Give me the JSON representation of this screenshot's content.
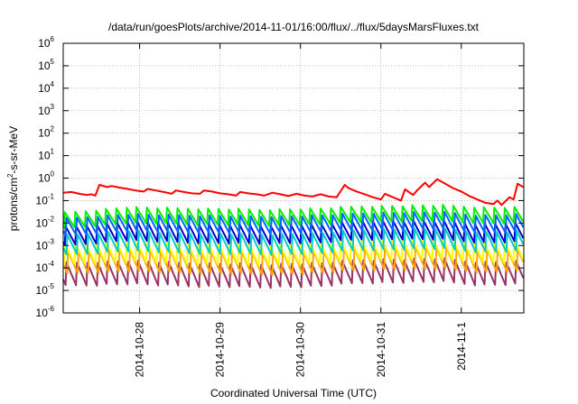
{
  "chart_data": {
    "type": "line",
    "title": "/data/run/goesPlots/archive/2014-11-01/16:00/flux/../flux/5daysMarsFluxes.txt",
    "xlabel": "Coordinated Universal Time (UTC)",
    "ylabel": {
      "base": "protons/cm",
      "sup": "2",
      "rest": "-s-sr-MeV"
    },
    "yscale": "log",
    "ylim_exponents": [
      -6,
      6
    ],
    "y_ticks": [
      {
        "base": "10",
        "exp": "-6"
      },
      {
        "base": "10",
        "exp": "-5"
      },
      {
        "base": "10",
        "exp": "-4"
      },
      {
        "base": "10",
        "exp": "-3"
      },
      {
        "base": "10",
        "exp": "-2"
      },
      {
        "base": "10",
        "exp": "-1"
      },
      {
        "base": "10",
        "exp": "0"
      },
      {
        "base": "10",
        "exp": "1"
      },
      {
        "base": "10",
        "exp": "2"
      },
      {
        "base": "10",
        "exp": "3"
      },
      {
        "base": "10",
        "exp": "4"
      },
      {
        "base": "10",
        "exp": "5"
      },
      {
        "base": "10",
        "exp": "6"
      }
    ],
    "x_domain_days": [
      0,
      5.727
    ],
    "x_ticks": [
      {
        "label": "2014-10-28",
        "day": 0.95
      },
      {
        "label": "2014-10-29",
        "day": 1.95
      },
      {
        "label": "2014-10-30",
        "day": 2.95
      },
      {
        "label": "2014-10-31",
        "day": 3.95
      },
      {
        "label": "2014-11-1",
        "day": 4.95
      }
    ],
    "grid": true,
    "colors": [
      "#ff0000",
      "#00ee00",
      "#0066ff",
      "#0000cc",
      "#00cccc",
      "#ffff00",
      "#ffa500",
      "#993366"
    ],
    "series": [
      {
        "color": "#ff0000",
        "log_points": [
          [
            0.0,
            -0.65
          ],
          [
            0.1,
            -0.62
          ],
          [
            0.2,
            -0.7
          ],
          [
            0.3,
            -0.75
          ],
          [
            0.35,
            -0.72
          ],
          [
            0.4,
            -0.78
          ],
          [
            0.45,
            -0.3
          ],
          [
            0.55,
            -0.4
          ],
          [
            0.6,
            -0.35
          ],
          [
            0.7,
            -0.42
          ],
          [
            0.8,
            -0.48
          ],
          [
            0.9,
            -0.55
          ],
          [
            1.0,
            -0.6
          ],
          [
            1.05,
            -0.48
          ],
          [
            1.15,
            -0.55
          ],
          [
            1.25,
            -0.62
          ],
          [
            1.35,
            -0.7
          ],
          [
            1.4,
            -0.55
          ],
          [
            1.5,
            -0.62
          ],
          [
            1.6,
            -0.68
          ],
          [
            1.7,
            -0.7
          ],
          [
            1.75,
            -0.55
          ],
          [
            1.85,
            -0.6
          ],
          [
            1.95,
            -0.68
          ],
          [
            2.05,
            -0.72
          ],
          [
            2.15,
            -0.78
          ],
          [
            2.2,
            -0.62
          ],
          [
            2.3,
            -0.68
          ],
          [
            2.4,
            -0.72
          ],
          [
            2.5,
            -0.78
          ],
          [
            2.6,
            -0.65
          ],
          [
            2.7,
            -0.72
          ],
          [
            2.8,
            -0.8
          ],
          [
            2.9,
            -0.7
          ],
          [
            3.0,
            -0.78
          ],
          [
            3.1,
            -0.82
          ],
          [
            3.2,
            -0.72
          ],
          [
            3.3,
            -0.82
          ],
          [
            3.4,
            -0.85
          ],
          [
            3.5,
            -0.3
          ],
          [
            3.55,
            -0.45
          ],
          [
            3.65,
            -0.6
          ],
          [
            3.75,
            -0.72
          ],
          [
            3.85,
            -0.85
          ],
          [
            3.95,
            -0.95
          ],
          [
            4.0,
            -0.7
          ],
          [
            4.1,
            -0.85
          ],
          [
            4.2,
            -1.0
          ],
          [
            4.25,
            -0.5
          ],
          [
            4.35,
            -0.75
          ],
          [
            4.4,
            -0.55
          ],
          [
            4.5,
            -0.2
          ],
          [
            4.55,
            -0.4
          ],
          [
            4.65,
            -0.05
          ],
          [
            4.75,
            -0.25
          ],
          [
            4.85,
            -0.45
          ],
          [
            4.95,
            -0.6
          ],
          [
            5.05,
            -0.8
          ],
          [
            5.15,
            -0.95
          ],
          [
            5.25,
            -1.1
          ],
          [
            5.35,
            -1.15
          ],
          [
            5.4,
            -1.0
          ],
          [
            5.45,
            -1.2
          ],
          [
            5.55,
            -0.85
          ],
          [
            5.6,
            -0.95
          ],
          [
            5.65,
            -0.25
          ],
          [
            5.72,
            -0.4
          ]
        ]
      },
      {
        "color": "#00ee00",
        "base": -1.8,
        "amp": 0.75,
        "period": 0.127,
        "start": 0.02,
        "trend": [
          [
            0,
            -1.9
          ],
          [
            0.8,
            -1.65
          ],
          [
            1.5,
            -1.7
          ],
          [
            2.5,
            -1.75
          ],
          [
            3.2,
            -1.7
          ],
          [
            3.7,
            -1.6
          ],
          [
            4.7,
            -1.55
          ],
          [
            5.2,
            -1.65
          ],
          [
            5.72,
            -1.65
          ]
        ]
      },
      {
        "color": "#0066ff",
        "base": -2.15,
        "amp": 0.85,
        "period": 0.127,
        "start": 0.04,
        "trend": [
          [
            0,
            -2.2
          ],
          [
            0.8,
            -2.0
          ],
          [
            1.5,
            -2.05
          ],
          [
            2.5,
            -2.1
          ],
          [
            3.2,
            -2.05
          ],
          [
            3.7,
            -1.95
          ],
          [
            4.7,
            -1.9
          ],
          [
            5.2,
            -2.05
          ],
          [
            5.72,
            -2.0
          ]
        ]
      },
      {
        "color": "#0000cc",
        "base": -2.55,
        "amp": 0.9,
        "period": 0.127,
        "start": 0.03,
        "trend": [
          [
            0,
            -2.6
          ],
          [
            0.8,
            -2.35
          ],
          [
            1.5,
            -2.45
          ],
          [
            2.5,
            -2.5
          ],
          [
            3.2,
            -2.45
          ],
          [
            3.7,
            -2.3
          ],
          [
            4.7,
            -2.3
          ],
          [
            5.2,
            -2.45
          ],
          [
            5.72,
            -2.4
          ]
        ]
      },
      {
        "color": "#00cccc",
        "base": -2.95,
        "amp": 0.95,
        "period": 0.127,
        "start": 0.05,
        "trend": [
          [
            0,
            -3.0
          ],
          [
            0.8,
            -2.8
          ],
          [
            1.5,
            -2.9
          ],
          [
            2.5,
            -2.95
          ],
          [
            3.2,
            -2.9
          ],
          [
            3.7,
            -2.75
          ],
          [
            4.7,
            -2.7
          ],
          [
            5.2,
            -2.85
          ],
          [
            5.72,
            -2.8
          ]
        ]
      },
      {
        "color": "#ffff00",
        "base": -3.4,
        "amp": 1.0,
        "period": 0.127,
        "start": 0.02,
        "trend": [
          [
            0,
            -3.4
          ],
          [
            0.8,
            -3.25
          ],
          [
            1.5,
            -3.35
          ],
          [
            2.5,
            -3.4
          ],
          [
            3.2,
            -3.35
          ],
          [
            3.7,
            -3.2
          ],
          [
            4.7,
            -3.15
          ],
          [
            5.2,
            -3.3
          ],
          [
            5.72,
            -3.25
          ]
        ]
      },
      {
        "color": "#ffa500",
        "base": -3.8,
        "amp": 1.05,
        "period": 0.127,
        "start": 0.06,
        "trend": [
          [
            0,
            -3.8
          ],
          [
            0.8,
            -3.65
          ],
          [
            1.5,
            -3.75
          ],
          [
            2.5,
            -3.8
          ],
          [
            3.2,
            -3.75
          ],
          [
            3.7,
            -3.6
          ],
          [
            4.7,
            -3.55
          ],
          [
            5.2,
            -3.7
          ],
          [
            5.72,
            -3.65
          ]
        ]
      },
      {
        "color": "#993366",
        "base": -4.4,
        "amp": 1.1,
        "period": 0.127,
        "start": 0.04,
        "trend": [
          [
            0,
            -4.3
          ],
          [
            0.8,
            -4.2
          ],
          [
            1.5,
            -4.3
          ],
          [
            2.5,
            -4.35
          ],
          [
            3.2,
            -4.3
          ],
          [
            3.7,
            -4.15
          ],
          [
            4.7,
            -4.1
          ],
          [
            5.2,
            -4.25
          ],
          [
            5.72,
            -4.2
          ]
        ]
      }
    ]
  }
}
